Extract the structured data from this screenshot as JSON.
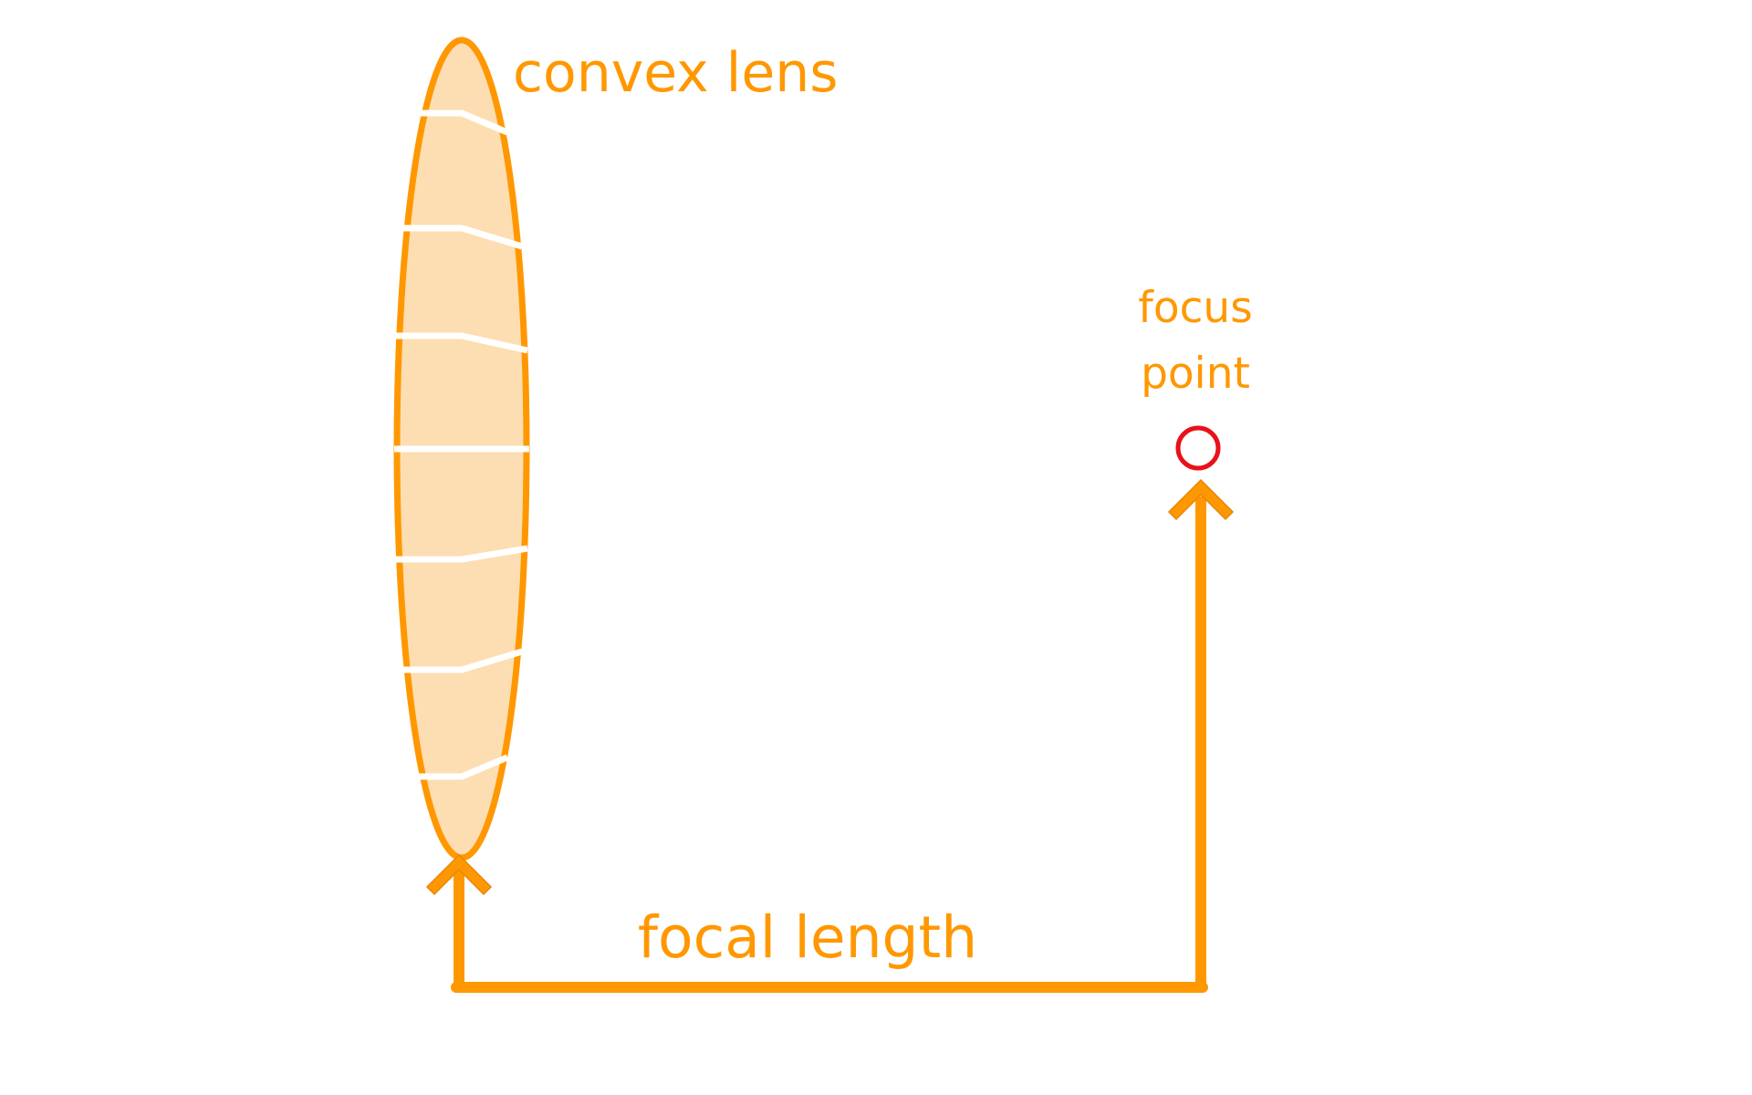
{
  "diagram": {
    "lens_label": "convex lens",
    "focus_label_line1": "focus",
    "focus_label_line2": "point",
    "focal_length_label": "focal length"
  },
  "colors": {
    "accent": "#FF9800",
    "lens_fill": "#FDDEB2",
    "focus_point": "#E8111A",
    "ray": "#FFFFFF",
    "background": "#FFFFFF"
  }
}
